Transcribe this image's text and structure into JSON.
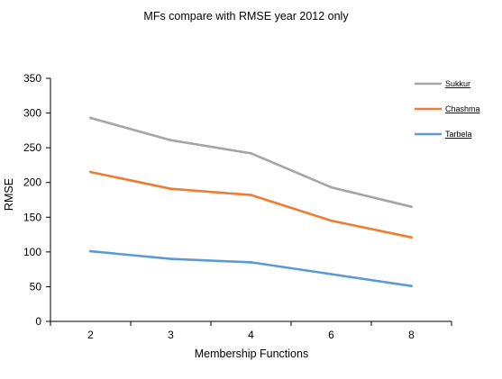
{
  "chart_data": {
    "type": "line",
    "title": "MFs compare with RMSE year 2012 only",
    "xlabel": "Membership Functions",
    "ylabel": "RMSE",
    "categories": [
      "2",
      "3",
      "4",
      "6",
      "8"
    ],
    "ylim": [
      0,
      350
    ],
    "yticks": [
      0,
      50,
      100,
      150,
      200,
      250,
      300,
      350
    ],
    "grid": false,
    "legend_position": "right",
    "series": [
      {
        "name": "Sukkur",
        "color": "#a5a5a5",
        "values": [
          293,
          261,
          242,
          193,
          165
        ]
      },
      {
        "name": "Chashma",
        "color": "#ed7d31",
        "values": [
          215,
          191,
          182,
          145,
          121
        ]
      },
      {
        "name": "Tarbela",
        "color": "#5b9bd5",
        "values": [
          101,
          90,
          85,
          68,
          51
        ]
      }
    ]
  }
}
